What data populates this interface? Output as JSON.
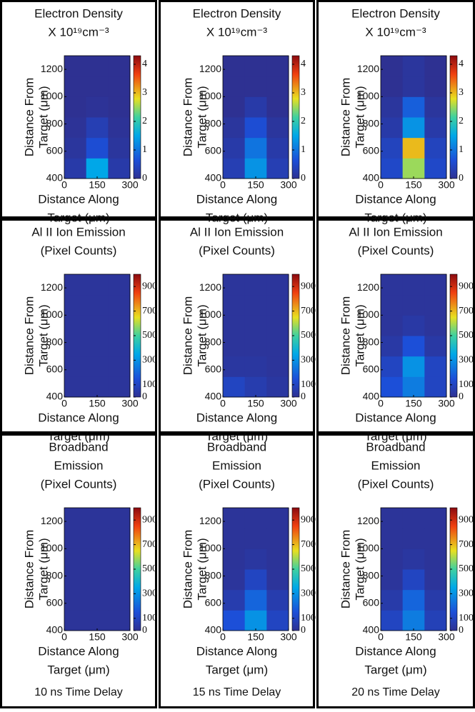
{
  "chart_data": [
    {
      "type": "heatmap",
      "title": [
        "Electron Density",
        "X 10¹⁹cm⁻³"
      ],
      "xlabel": [
        "Distance Along",
        "Target (μm)"
      ],
      "ylabel": [
        "Distance From",
        "Target (μm)"
      ],
      "x": [
        50,
        150,
        250
      ],
      "y": [
        475,
        625,
        775,
        925,
        1075,
        1225
      ],
      "values": [
        [
          0.2,
          1.5,
          0.2
        ],
        [
          0.1,
          0.6,
          0.1
        ],
        [
          0.05,
          0.3,
          0.05
        ],
        [
          0,
          0.05,
          0
        ],
        [
          0,
          0,
          0
        ],
        [
          0,
          0,
          0
        ]
      ],
      "xlim": [
        0,
        300
      ],
      "ylim": [
        400,
        1300
      ],
      "xticks": [
        0,
        150,
        300
      ],
      "yticks": [
        400,
        600,
        800,
        1000,
        1200
      ],
      "clim": [
        0,
        4.3
      ],
      "cticks": [
        0,
        1,
        2,
        3,
        4
      ]
    },
    {
      "type": "heatmap",
      "title": [
        "Electron Density",
        "X 10¹⁹cm⁻³"
      ],
      "xlabel": [
        "Distance Along",
        "Target (μm)"
      ],
      "ylabel": [
        "Distance From",
        "Target (μm)"
      ],
      "x": [
        50,
        150,
        250
      ],
      "y": [
        475,
        625,
        775,
        925,
        1075,
        1225
      ],
      "values": [
        [
          0.3,
          1.3,
          0.3
        ],
        [
          0.2,
          1.0,
          0.2
        ],
        [
          0.1,
          0.6,
          0.1
        ],
        [
          0,
          0.2,
          0
        ],
        [
          0,
          0,
          0
        ],
        [
          0,
          0,
          0
        ]
      ],
      "xlim": [
        0,
        300
      ],
      "ylim": [
        400,
        1300
      ],
      "xticks": [
        0,
        150,
        300
      ],
      "yticks": [
        400,
        600,
        800,
        1000,
        1200
      ],
      "clim": [
        0,
        4.3
      ],
      "cticks": [
        0,
        1,
        2,
        3,
        4
      ]
    },
    {
      "type": "heatmap",
      "title": [
        "Electron Density",
        "X 10¹⁹cm⁻³"
      ],
      "xlabel": [
        "Distance Along",
        "Target (μm)"
      ],
      "ylabel": [
        "Distance From",
        "Target (μm)"
      ],
      "x": [
        50,
        150,
        250
      ],
      "y": [
        475,
        625,
        775,
        925,
        1075,
        1225
      ],
      "values": [
        [
          0.5,
          2.5,
          0.5
        ],
        [
          0.4,
          3.0,
          0.4
        ],
        [
          0.2,
          1.3,
          0.2
        ],
        [
          0.1,
          0.8,
          0.1
        ],
        [
          0,
          0.1,
          0
        ],
        [
          0,
          0.1,
          0
        ]
      ],
      "xlim": [
        0,
        300
      ],
      "ylim": [
        400,
        1300
      ],
      "xticks": [
        0,
        150,
        300
      ],
      "yticks": [
        400,
        600,
        800,
        1000,
        1200
      ],
      "clim": [
        0,
        4.3
      ],
      "cticks": [
        0,
        1,
        2,
        3,
        4
      ]
    },
    {
      "type": "heatmap",
      "title": [
        "Al II Ion Emission",
        "(Pixel Counts)"
      ],
      "xlabel": [
        "Distance Along",
        "Target (μm)"
      ],
      "ylabel": [
        "Distance From",
        "Target (μm)"
      ],
      "x": [
        50,
        150,
        250
      ],
      "y": [
        475,
        625,
        775,
        925,
        1075,
        1225
      ],
      "values": [
        [
          20,
          20,
          20
        ],
        [
          20,
          20,
          20
        ],
        [
          20,
          20,
          20
        ],
        [
          20,
          20,
          20
        ],
        [
          20,
          20,
          20
        ],
        [
          20,
          20,
          20
        ]
      ],
      "xlim": [
        0,
        300
      ],
      "ylim": [
        400,
        1300
      ],
      "xticks": [
        0,
        150,
        300
      ],
      "yticks": [
        400,
        600,
        800,
        1000,
        1200
      ],
      "clim": [
        0,
        1000
      ],
      "cticks": [
        0,
        100,
        300,
        500,
        700,
        900
      ]
    },
    {
      "type": "heatmap",
      "title": [
        "Al II Ion Emission",
        "(Pixel Counts)"
      ],
      "xlabel": [
        "Distance Along",
        "Target (μm)"
      ],
      "ylabel": [
        "Distance From",
        "Target (μm)"
      ],
      "x": [
        50,
        150,
        250
      ],
      "y": [
        475,
        625,
        775,
        925,
        1075,
        1225
      ],
      "values": [
        [
          100,
          60,
          30
        ],
        [
          30,
          30,
          20
        ],
        [
          20,
          20,
          20
        ],
        [
          20,
          20,
          20
        ],
        [
          20,
          20,
          20
        ],
        [
          20,
          20,
          20
        ]
      ],
      "xlim": [
        0,
        300
      ],
      "ylim": [
        400,
        1300
      ],
      "xticks": [
        0,
        150,
        300
      ],
      "yticks": [
        400,
        600,
        800,
        1000,
        1200
      ],
      "clim": [
        0,
        1000
      ],
      "cticks": [
        0,
        100,
        300,
        500,
        700,
        900
      ]
    },
    {
      "type": "heatmap",
      "title": [
        "Al II Ion Emission",
        "(Pixel Counts)"
      ],
      "xlabel": [
        "Distance Along",
        "Target (μm)"
      ],
      "ylabel": [
        "Distance From",
        "Target (μm)"
      ],
      "x": [
        50,
        150,
        250
      ],
      "y": [
        475,
        625,
        775,
        925,
        1075,
        1225
      ],
      "values": [
        [
          150,
          250,
          100
        ],
        [
          100,
          300,
          100
        ],
        [
          40,
          150,
          40
        ],
        [
          20,
          40,
          20
        ],
        [
          20,
          20,
          20
        ],
        [
          20,
          20,
          20
        ]
      ],
      "xlim": [
        0,
        300
      ],
      "ylim": [
        400,
        1300
      ],
      "xticks": [
        0,
        150,
        300
      ],
      "yticks": [
        400,
        600,
        800,
        1000,
        1200
      ],
      "clim": [
        0,
        1000
      ],
      "cticks": [
        0,
        100,
        300,
        500,
        700,
        900
      ]
    },
    {
      "type": "heatmap",
      "title": [
        "Broadband",
        "Emission",
        "(Pixel Counts)"
      ],
      "xlabel": [
        "Distance Along",
        "Target (μm)"
      ],
      "ylabel": [
        "Distance From",
        "Target (μm)"
      ],
      "x": [
        50,
        150,
        250
      ],
      "y": [
        475,
        625,
        775,
        925,
        1075,
        1225
      ],
      "values": [
        [
          15,
          15,
          15
        ],
        [
          15,
          15,
          15
        ],
        [
          15,
          15,
          15
        ],
        [
          15,
          15,
          15
        ],
        [
          15,
          15,
          15
        ],
        [
          15,
          15,
          15
        ]
      ],
      "xlim": [
        0,
        300
      ],
      "ylim": [
        400,
        1300
      ],
      "xticks": [
        0,
        150,
        300
      ],
      "yticks": [
        400,
        600,
        800,
        1000,
        1200
      ],
      "clim": [
        0,
        1000
      ],
      "cticks": [
        0,
        100,
        300,
        500,
        700,
        900
      ]
    },
    {
      "type": "heatmap",
      "title": [
        "Broadband",
        "Emission",
        "(Pixel Counts)"
      ],
      "xlabel": [
        "Distance Along",
        "Target (μm)"
      ],
      "ylabel": [
        "Distance From",
        "Target (μm)"
      ],
      "x": [
        50,
        150,
        250
      ],
      "y": [
        475,
        625,
        775,
        925,
        1075,
        1225
      ],
      "values": [
        [
          150,
          300,
          100
        ],
        [
          60,
          200,
          60
        ],
        [
          20,
          100,
          20
        ],
        [
          15,
          30,
          15
        ],
        [
          15,
          15,
          15
        ],
        [
          15,
          15,
          15
        ]
      ],
      "xlim": [
        0,
        300
      ],
      "ylim": [
        400,
        1300
      ],
      "xticks": [
        0,
        150,
        300
      ],
      "yticks": [
        400,
        600,
        800,
        1000,
        1200
      ],
      "clim": [
        0,
        1000
      ],
      "cticks": [
        0,
        100,
        300,
        500,
        700,
        900
      ]
    },
    {
      "type": "heatmap",
      "title": [
        "Broadband",
        "Emission",
        "(Pixel Counts)"
      ],
      "xlabel": [
        "Distance Along",
        "Target (μm)"
      ],
      "ylabel": [
        "Distance From",
        "Target (μm)"
      ],
      "x": [
        50,
        150,
        250
      ],
      "y": [
        475,
        625,
        775,
        925,
        1075,
        1225
      ],
      "values": [
        [
          100,
          250,
          80
        ],
        [
          50,
          200,
          50
        ],
        [
          20,
          100,
          20
        ],
        [
          15,
          30,
          15
        ],
        [
          15,
          15,
          15
        ],
        [
          15,
          15,
          15
        ]
      ],
      "xlim": [
        0,
        300
      ],
      "ylim": [
        400,
        1300
      ],
      "xticks": [
        0,
        150,
        300
      ],
      "yticks": [
        400,
        600,
        800,
        1000,
        1200
      ],
      "clim": [
        0,
        1000
      ],
      "cticks": [
        0,
        100,
        300,
        500,
        700,
        900
      ]
    }
  ],
  "time_delays": [
    "10 ns Time Delay",
    "15 ns Time Delay",
    "20 ns Time Delay"
  ]
}
